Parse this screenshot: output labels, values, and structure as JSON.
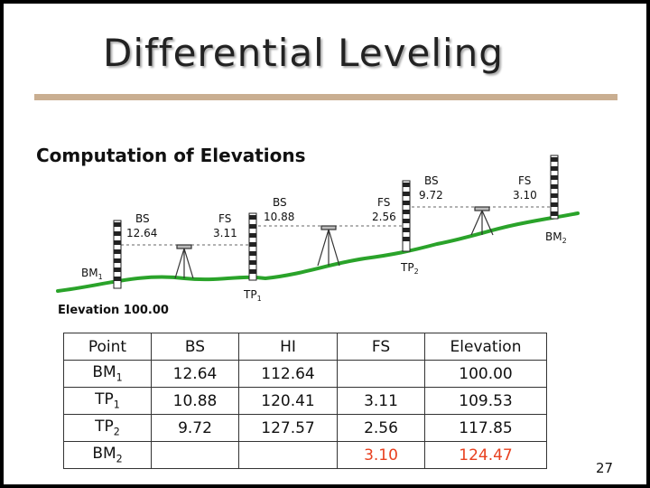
{
  "slide": {
    "title": "Differential Leveling",
    "subtitle": "Computation of Elevations",
    "elevation_label": "Elevation 100.00",
    "page_number": "27"
  },
  "diagram": {
    "bm1": {
      "name": "BM",
      "sub": "1"
    },
    "tp1": {
      "name": "TP",
      "sub": "1"
    },
    "tp2": {
      "name": "TP",
      "sub": "2"
    },
    "bm2": {
      "name": "BM",
      "sub": "2"
    },
    "setup1": {
      "bs_label": "BS",
      "bs_value": "12.64",
      "fs_label": "FS",
      "fs_value": "3.11"
    },
    "setup2": {
      "bs_label": "BS",
      "bs_value": "10.88",
      "fs_label": "FS",
      "fs_value": "2.56"
    },
    "setup3": {
      "bs_label": "BS",
      "bs_value": "9.72",
      "fs_label": "FS",
      "fs_value": "3.10"
    },
    "ground_color": "#2aa32a"
  },
  "table": {
    "headers": [
      "Point",
      "BS",
      "HI",
      "FS",
      "Elevation"
    ],
    "rows": [
      {
        "point": "BM",
        "sub": "1",
        "bs": "12.64",
        "hi": "112.64",
        "fs": "",
        "elevation": "100.00"
      },
      {
        "point": "TP",
        "sub": "1",
        "bs": "10.88",
        "hi": "120.41",
        "fs": "3.11",
        "elevation": "109.53"
      },
      {
        "point": "TP",
        "sub": "2",
        "bs": "9.72",
        "hi": "127.57",
        "fs": "2.56",
        "elevation": "117.85"
      },
      {
        "point": "BM",
        "sub": "2",
        "bs": "",
        "hi": "",
        "fs": "3.10",
        "elevation": "124.47",
        "highlight": "#e8401f"
      }
    ]
  }
}
